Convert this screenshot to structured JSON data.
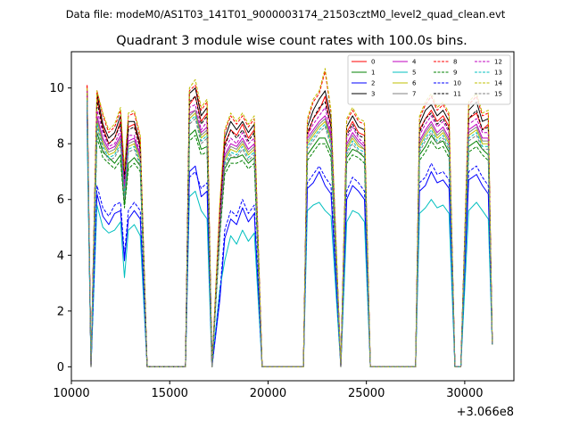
{
  "chart_data": {
    "type": "line",
    "suptitle": "Data file: modeM0/AS1T03_141T01_9000003174_21503cztM0_level2_quad_clean.evt",
    "title": "Quadrant 3 module wise count rates with 100.0s bins.",
    "xlabel": "",
    "ylabel": "",
    "x_offset_label": "+3.066e8",
    "xlim": [
      10000,
      32500
    ],
    "ylim": [
      -0.5,
      11.3
    ],
    "x_ticks": [
      10000,
      15000,
      20000,
      25000,
      30000
    ],
    "x_tick_labels": [
      "10000",
      "15000",
      "20000",
      "25000",
      "30000"
    ],
    "y_ticks": [
      0,
      2,
      4,
      6,
      8,
      10
    ],
    "y_tick_labels": [
      "0",
      "2",
      "4",
      "6",
      "8",
      "10"
    ],
    "legend_position": "top-right",
    "legend_columns": 4,
    "x": [
      10800,
      11000,
      11300,
      11600,
      11900,
      12200,
      12500,
      12700,
      12900,
      13200,
      13500,
      13850,
      15800,
      16000,
      16300,
      16600,
      16900,
      17150,
      17550,
      17800,
      18100,
      18400,
      18700,
      19000,
      19300,
      19700,
      21800,
      22000,
      22300,
      22600,
      22900,
      23200,
      23700,
      24000,
      24300,
      24600,
      24900,
      25200,
      27500,
      27700,
      28000,
      28300,
      28600,
      28900,
      29200,
      29500,
      29800,
      30200,
      30600,
      30900,
      31200,
      31400
    ],
    "series": [
      {
        "name": "0",
        "color": "#ff0000",
        "dash": false,
        "values": [
          10.1,
          0.0,
          9.6,
          8.6,
          8.0,
          8.2,
          8.8,
          6.8,
          8.6,
          8.7,
          7.9,
          0.0,
          0.0,
          9.4,
          9.7,
          8.8,
          9.1,
          0.0,
          5.4,
          8.0,
          8.5,
          8.3,
          8.7,
          8.2,
          8.5,
          0.0,
          0.0,
          8.3,
          8.9,
          9.2,
          9.7,
          8.6,
          0.0,
          8.4,
          8.8,
          8.4,
          8.3,
          0.0,
          0.0,
          8.5,
          8.9,
          9.2,
          8.8,
          9.0,
          8.6,
          0.0,
          0.0,
          8.9,
          9.1,
          8.5,
          8.7,
          0.8
        ]
      },
      {
        "name": "1",
        "color": "#008000",
        "dash": false,
        "values": [
          9.5,
          0.0,
          8.4,
          7.7,
          7.5,
          7.3,
          7.6,
          5.8,
          7.3,
          7.5,
          7.2,
          0.0,
          0.0,
          8.3,
          8.5,
          7.8,
          7.9,
          0.0,
          4.8,
          7.1,
          7.5,
          7.5,
          7.6,
          7.3,
          7.5,
          0.0,
          0.0,
          7.6,
          7.9,
          8.2,
          8.2,
          7.7,
          0.0,
          7.5,
          7.8,
          7.7,
          7.5,
          0.0,
          0.0,
          7.6,
          7.9,
          8.3,
          8.0,
          8.1,
          7.7,
          0.0,
          0.0,
          7.9,
          8.1,
          7.8,
          7.6,
          0.8
        ]
      },
      {
        "name": "2",
        "color": "#0000ff",
        "dash": false,
        "values": [
          9.0,
          0.0,
          6.2,
          5.4,
          5.1,
          5.5,
          5.6,
          3.8,
          5.3,
          5.6,
          5.3,
          0.0,
          0.0,
          7.0,
          7.2,
          6.1,
          6.3,
          0.0,
          2.4,
          4.6,
          5.3,
          5.1,
          5.7,
          5.2,
          5.5,
          0.0,
          0.0,
          6.4,
          6.6,
          7.0,
          6.5,
          6.2,
          0.0,
          6.0,
          6.5,
          6.3,
          6.0,
          0.0,
          0.0,
          6.3,
          6.5,
          7.0,
          6.6,
          6.7,
          6.4,
          0.0,
          0.0,
          6.7,
          6.9,
          6.5,
          6.2,
          0.8
        ]
      },
      {
        "name": "3",
        "color": "#000000",
        "dash": false,
        "values": [
          9.9,
          0.0,
          9.8,
          8.7,
          8.2,
          8.4,
          9.0,
          6.9,
          8.8,
          8.8,
          8.0,
          0.0,
          0.0,
          9.8,
          10.0,
          9.0,
          9.3,
          0.0,
          5.5,
          8.2,
          8.8,
          8.5,
          8.8,
          8.4,
          8.7,
          0.0,
          0.0,
          8.6,
          9.2,
          9.6,
          9.9,
          8.9,
          0.0,
          8.6,
          9.0,
          8.6,
          8.5,
          0.0,
          0.0,
          8.7,
          9.2,
          9.4,
          9.0,
          9.2,
          8.8,
          0.0,
          0.0,
          9.2,
          9.5,
          8.8,
          8.9,
          0.8
        ]
      },
      {
        "name": "4",
        "color": "#bf00bf",
        "dash": false,
        "values": [
          9.8,
          0.0,
          9.0,
          8.2,
          7.8,
          7.9,
          8.3,
          6.4,
          8.1,
          8.2,
          7.6,
          0.0,
          0.0,
          9.1,
          9.2,
          8.4,
          8.6,
          0.0,
          5.1,
          7.6,
          8.0,
          7.9,
          8.2,
          7.8,
          8.0,
          0.0,
          0.0,
          8.2,
          8.5,
          8.8,
          9.0,
          8.3,
          0.0,
          8.0,
          8.4,
          8.1,
          7.9,
          0.0,
          0.0,
          8.1,
          8.5,
          8.8,
          8.4,
          8.6,
          8.2,
          0.0,
          0.0,
          8.5,
          8.7,
          8.2,
          8.2,
          0.8
        ]
      },
      {
        "name": "5",
        "color": "#00bfbf",
        "dash": false,
        "values": [
          8.5,
          0.0,
          5.8,
          5.0,
          4.8,
          4.9,
          5.2,
          3.2,
          4.9,
          5.1,
          4.7,
          0.0,
          0.0,
          6.1,
          6.3,
          5.6,
          5.3,
          0.0,
          2.8,
          3.8,
          4.7,
          4.4,
          4.9,
          4.5,
          4.8,
          0.0,
          0.0,
          5.6,
          5.8,
          5.9,
          5.6,
          5.4,
          0.0,
          5.2,
          5.6,
          5.5,
          5.2,
          0.0,
          0.0,
          5.5,
          5.7,
          6.0,
          5.7,
          5.8,
          5.5,
          0.0,
          0.0,
          5.6,
          5.9,
          5.6,
          5.3,
          0.8
        ]
      },
      {
        "name": "6",
        "color": "#bfbf00",
        "dash": false,
        "values": [
          9.6,
          0.0,
          8.8,
          8.0,
          7.6,
          7.7,
          8.1,
          6.2,
          7.9,
          8.0,
          7.4,
          0.0,
          0.0,
          8.9,
          9.1,
          8.2,
          8.4,
          0.0,
          5.0,
          7.4,
          7.8,
          7.7,
          8.0,
          7.6,
          7.8,
          0.0,
          0.0,
          8.0,
          8.3,
          8.6,
          8.8,
          8.1,
          0.0,
          7.8,
          8.2,
          7.9,
          7.8,
          0.0,
          0.0,
          7.9,
          8.3,
          8.6,
          8.2,
          8.4,
          8.0,
          0.0,
          0.0,
          8.3,
          8.5,
          8.0,
          8.0,
          0.8
        ]
      },
      {
        "name": "7",
        "color": "#808080",
        "dash": false,
        "values": [
          9.7,
          0.0,
          8.9,
          8.1,
          7.7,
          7.8,
          8.2,
          6.3,
          8.0,
          8.1,
          7.5,
          0.0,
          0.0,
          9.0,
          9.2,
          8.3,
          8.5,
          0.0,
          5.0,
          7.5,
          7.9,
          7.8,
          8.1,
          7.7,
          7.9,
          0.0,
          0.0,
          8.1,
          8.4,
          8.7,
          8.9,
          8.2,
          0.0,
          7.9,
          8.3,
          8.0,
          7.8,
          0.0,
          0.0,
          8.0,
          8.4,
          8.7,
          8.3,
          8.5,
          8.1,
          0.0,
          0.0,
          8.4,
          8.6,
          8.1,
          8.1,
          0.8
        ]
      },
      {
        "name": "8",
        "color": "#ff0000",
        "dash": true,
        "values": [
          10.1,
          0.0,
          9.9,
          9.0,
          8.4,
          8.6,
          9.2,
          7.0,
          9.0,
          9.1,
          8.2,
          0.0,
          0.0,
          9.9,
          10.1,
          9.2,
          9.5,
          0.0,
          5.8,
          8.4,
          9.0,
          8.7,
          9.0,
          8.6,
          8.9,
          0.0,
          0.0,
          8.8,
          9.5,
          9.8,
          10.6,
          9.1,
          0.0,
          8.8,
          9.2,
          8.8,
          8.7,
          0.0,
          0.0,
          8.9,
          9.4,
          9.7,
          9.2,
          9.4,
          9.0,
          0.0,
          0.0,
          9.4,
          9.7,
          9.0,
          9.1,
          0.8
        ]
      },
      {
        "name": "9",
        "color": "#008000",
        "dash": true,
        "values": [
          9.3,
          0.0,
          8.2,
          7.5,
          7.3,
          7.1,
          7.4,
          5.7,
          7.1,
          7.3,
          7.0,
          0.0,
          0.0,
          8.1,
          8.3,
          7.6,
          7.7,
          0.0,
          4.7,
          6.9,
          7.3,
          7.3,
          7.4,
          7.1,
          7.3,
          0.0,
          0.0,
          7.4,
          7.7,
          8.0,
          8.0,
          7.5,
          0.0,
          7.3,
          7.6,
          7.5,
          7.3,
          0.0,
          0.0,
          7.4,
          7.7,
          8.1,
          7.8,
          7.9,
          7.5,
          0.0,
          0.0,
          7.7,
          7.9,
          7.6,
          7.4,
          0.8
        ]
      },
      {
        "name": "10",
        "color": "#0000ff",
        "dash": true,
        "values": [
          9.2,
          0.0,
          6.5,
          5.7,
          5.4,
          5.8,
          5.9,
          4.0,
          5.6,
          5.9,
          5.6,
          0.0,
          0.0,
          6.8,
          7.0,
          6.4,
          6.6,
          0.0,
          2.6,
          4.9,
          5.6,
          5.4,
          6.0,
          5.5,
          5.8,
          0.0,
          0.0,
          6.6,
          6.9,
          7.2,
          6.8,
          6.5,
          0.0,
          6.3,
          6.8,
          6.6,
          6.3,
          0.0,
          0.0,
          6.6,
          6.8,
          7.3,
          6.9,
          7.0,
          6.7,
          0.0,
          0.0,
          7.0,
          7.2,
          6.8,
          6.5,
          0.8
        ]
      },
      {
        "name": "11",
        "color": "#000000",
        "dash": true,
        "values": [
          9.8,
          0.0,
          9.5,
          8.5,
          8.0,
          8.2,
          8.7,
          6.7,
          8.5,
          8.6,
          7.8,
          0.0,
          0.0,
          9.5,
          9.7,
          8.7,
          9.0,
          0.0,
          5.3,
          7.9,
          8.5,
          8.2,
          8.5,
          8.1,
          8.4,
          0.0,
          0.0,
          8.4,
          8.9,
          9.3,
          9.5,
          8.6,
          0.0,
          8.3,
          8.7,
          8.3,
          8.2,
          0.0,
          0.0,
          8.4,
          8.9,
          9.1,
          8.7,
          8.9,
          8.5,
          0.0,
          0.0,
          8.9,
          9.2,
          8.5,
          8.6,
          0.8
        ]
      },
      {
        "name": "12",
        "color": "#bf00bf",
        "dash": true,
        "values": [
          9.9,
          0.0,
          9.2,
          8.4,
          7.9,
          8.0,
          8.5,
          6.5,
          8.3,
          8.3,
          7.7,
          0.0,
          0.0,
          9.3,
          9.4,
          8.5,
          8.8,
          0.0,
          5.2,
          7.8,
          8.2,
          8.0,
          8.4,
          8.0,
          8.2,
          0.0,
          0.0,
          8.3,
          8.7,
          9.0,
          9.3,
          8.4,
          0.0,
          8.2,
          8.6,
          8.2,
          8.0,
          0.0,
          0.0,
          8.3,
          8.7,
          9.0,
          8.6,
          8.8,
          8.4,
          0.0,
          0.0,
          8.7,
          8.9,
          8.4,
          8.4,
          0.8
        ]
      },
      {
        "name": "13",
        "color": "#00bfbf",
        "dash": true,
        "values": [
          9.6,
          0.0,
          8.7,
          7.9,
          7.5,
          7.6,
          8.0,
          6.1,
          7.8,
          7.9,
          7.3,
          0.0,
          0.0,
          8.8,
          9.0,
          8.1,
          8.3,
          0.0,
          4.9,
          7.3,
          7.7,
          7.6,
          7.9,
          7.5,
          7.7,
          0.0,
          0.0,
          7.9,
          8.2,
          8.5,
          8.7,
          8.0,
          0.0,
          7.7,
          8.1,
          7.8,
          7.7,
          0.0,
          0.0,
          7.8,
          8.2,
          8.5,
          8.1,
          8.3,
          7.9,
          0.0,
          0.0,
          8.2,
          8.4,
          7.9,
          7.9,
          0.8
        ]
      },
      {
        "name": "14",
        "color": "#bfbf00",
        "dash": true,
        "values": [
          10.0,
          0.0,
          9.9,
          9.1,
          8.5,
          8.7,
          9.3,
          7.1,
          9.1,
          9.2,
          8.3,
          0.0,
          0.0,
          10.0,
          10.3,
          9.3,
          9.6,
          0.0,
          5.9,
          8.5,
          9.1,
          8.8,
          9.1,
          8.7,
          9.0,
          0.0,
          0.0,
          8.9,
          9.6,
          9.9,
          10.7,
          9.2,
          0.0,
          8.9,
          9.3,
          8.9,
          8.8,
          0.0,
          0.0,
          9.0,
          9.5,
          9.8,
          9.3,
          9.5,
          9.1,
          0.0,
          0.0,
          9.5,
          9.8,
          9.1,
          9.2,
          0.8
        ]
      },
      {
        "name": "15",
        "color": "#808080",
        "dash": true,
        "values": [
          9.5,
          0.0,
          8.6,
          7.8,
          7.4,
          7.5,
          7.9,
          6.0,
          7.7,
          7.8,
          7.2,
          0.0,
          0.0,
          8.7,
          8.9,
          8.0,
          8.2,
          0.0,
          4.9,
          7.2,
          7.6,
          7.5,
          7.8,
          7.4,
          7.6,
          0.0,
          0.0,
          7.8,
          8.1,
          8.4,
          8.6,
          7.9,
          0.0,
          7.6,
          8.0,
          7.7,
          7.6,
          0.0,
          0.0,
          7.7,
          8.1,
          8.4,
          8.0,
          8.2,
          7.8,
          0.0,
          0.0,
          8.1,
          8.3,
          7.8,
          7.8,
          0.8
        ]
      }
    ]
  }
}
